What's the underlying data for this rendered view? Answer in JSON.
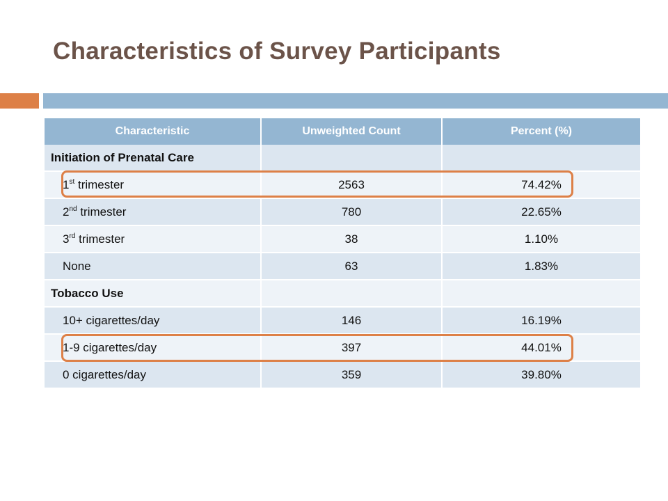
{
  "title": "Characteristics of Survey Participants",
  "table": {
    "headers": [
      "Characteristic",
      "Unweighted Count",
      "Percent (%)"
    ],
    "rows": [
      {
        "type": "section",
        "label": "Initiation of Prenatal Care"
      },
      {
        "type": "data",
        "label": "1",
        "sup": "st",
        "label_rest": " trimester",
        "count": "2563",
        "percent": "74.42%"
      },
      {
        "type": "data",
        "label": "2",
        "sup": "nd",
        "label_rest": " trimester",
        "count": "780",
        "percent": "22.65%"
      },
      {
        "type": "data",
        "label": "3",
        "sup": "rd",
        "label_rest": " trimester",
        "count": "38",
        "percent": "1.10%"
      },
      {
        "type": "data",
        "label": "None",
        "count": "63",
        "percent": "1.83%"
      },
      {
        "type": "section",
        "label": "Tobacco Use"
      },
      {
        "type": "data",
        "label": "10+ cigarettes/day",
        "count": "146",
        "percent": "16.19%"
      },
      {
        "type": "data",
        "label": "1-9 cigarettes/day",
        "count": "397",
        "percent": "44.01%"
      },
      {
        "type": "data",
        "label": "0 cigarettes/day",
        "count": "359",
        "percent": "39.80%"
      }
    ]
  },
  "colors": {
    "title": "#6b5349",
    "accent": "#dd8047",
    "header": "#94b6d2",
    "row_odd": "#dce6f0",
    "row_even": "#eef3f8"
  }
}
